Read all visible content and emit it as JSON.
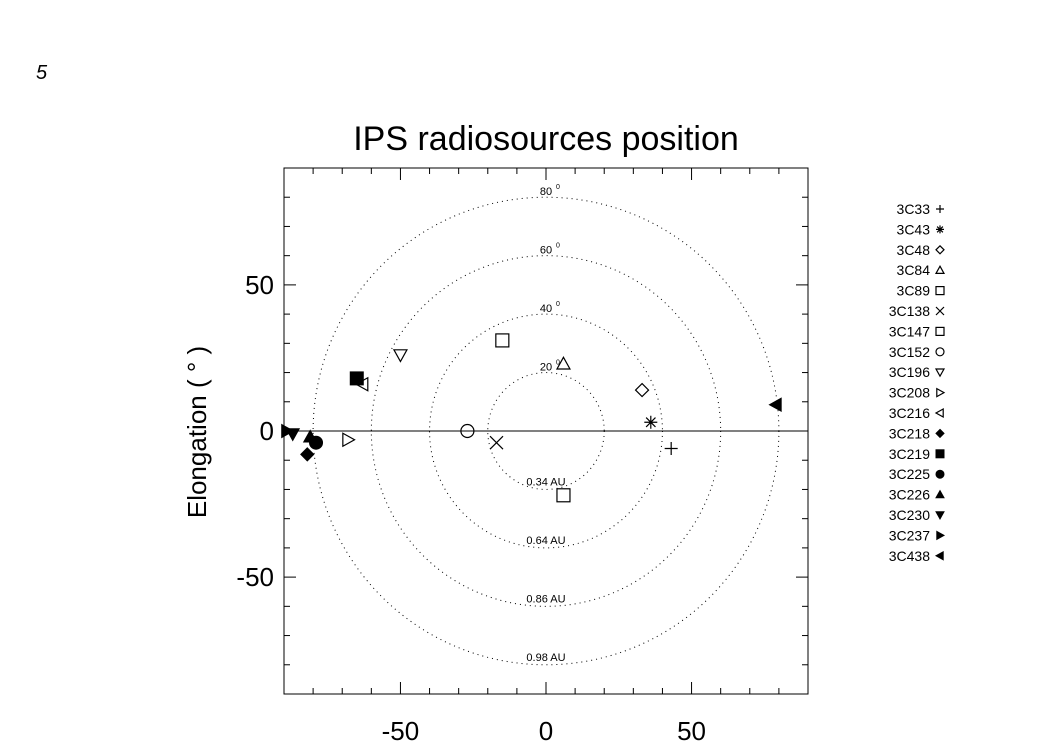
{
  "page_number": "5",
  "chart_data": {
    "type": "scatter",
    "title": "IPS radiosources position",
    "ylabel": "Elongation ( ° )",
    "xlabel": "",
    "xlim": [
      -90,
      90
    ],
    "ylim": [
      -90,
      90
    ],
    "x_ticks": [
      -50,
      0,
      50
    ],
    "y_ticks": [
      -50,
      0,
      50
    ],
    "grid": false,
    "legend_position": "right",
    "circles": [
      {
        "radius": 20,
        "style": "dotted",
        "angle_label": "20",
        "au_label": "0.34 AU"
      },
      {
        "radius": 40,
        "style": "dotted",
        "angle_label": "40",
        "au_label": "0.64 AU"
      },
      {
        "radius": 60,
        "style": "dotted",
        "angle_label": "60",
        "au_label": "0.86 AU"
      },
      {
        "radius": 80,
        "style": "dotted",
        "angle_label": "80",
        "au_label": "0.98 AU"
      }
    ],
    "series": [
      {
        "name": "3C33",
        "symbol": "plus",
        "x": 43,
        "y": -6
      },
      {
        "name": "3C43",
        "symbol": "asterisk",
        "x": 36,
        "y": 3
      },
      {
        "name": "3C48",
        "symbol": "diamond-open",
        "x": 33,
        "y": 14
      },
      {
        "name": "3C84",
        "symbol": "triangle-open",
        "x": 6,
        "y": 23
      },
      {
        "name": "3C89",
        "symbol": "square-open",
        "x": 6,
        "y": -22
      },
      {
        "name": "3C138",
        "symbol": "cross",
        "x": -17,
        "y": -4
      },
      {
        "name": "3C147",
        "symbol": "square-open",
        "x": -15,
        "y": 31
      },
      {
        "name": "3C152",
        "symbol": "circle-open",
        "x": -27,
        "y": 0
      },
      {
        "name": "3C196",
        "symbol": "tri-down-open",
        "x": -50,
        "y": 26
      },
      {
        "name": "3C208",
        "symbol": "tri-right-open",
        "x": -68,
        "y": -3
      },
      {
        "name": "3C216",
        "symbol": "tri-left-open",
        "x": -63,
        "y": 16
      },
      {
        "name": "3C218",
        "symbol": "diamond-filled",
        "x": -82,
        "y": -8
      },
      {
        "name": "3C219",
        "symbol": "square-filled",
        "x": -65,
        "y": 18
      },
      {
        "name": "3C225",
        "symbol": "circle-filled",
        "x": -79,
        "y": -4
      },
      {
        "name": "3C226",
        "symbol": "triangle-filled",
        "x": -81,
        "y": -2
      },
      {
        "name": "3C230",
        "symbol": "tri-down-filled",
        "x": -87,
        "y": -1
      },
      {
        "name": "3C237",
        "symbol": "tri-right-filled",
        "x": -89,
        "y": 0
      },
      {
        "name": "3C438",
        "symbol": "tri-left-filled",
        "x": 79,
        "y": 9
      }
    ]
  }
}
